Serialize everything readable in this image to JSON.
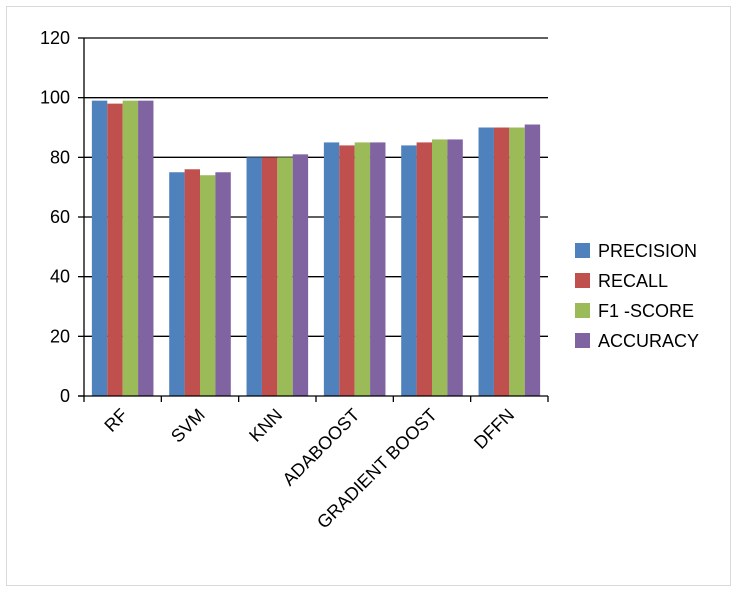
{
  "chart_data": {
    "type": "bar",
    "title": "",
    "xlabel": "",
    "ylabel": "",
    "categories": [
      "RF",
      "SVM",
      "KNN",
      "ADABOOST",
      "GRADIENT BOOST",
      "DFFN"
    ],
    "series": [
      {
        "name": "PRECISION",
        "color": "#4f81bd",
        "values": [
          99,
          75,
          80,
          85,
          84,
          90
        ]
      },
      {
        "name": "RECALL",
        "color": "#c0504d",
        "values": [
          98,
          76,
          80,
          84,
          85,
          90
        ]
      },
      {
        "name": "F1 -SCORE",
        "color": "#9bbb59",
        "values": [
          99,
          74,
          80,
          85,
          86,
          90
        ]
      },
      {
        "name": "ACCURACY",
        "color": "#8064a2",
        "values": [
          99,
          75,
          81,
          85,
          86,
          91
        ]
      }
    ],
    "ylim": [
      0,
      120
    ],
    "yticks": [
      0,
      20,
      40,
      60,
      80,
      100,
      120
    ],
    "grid": true,
    "legend_position": "right"
  }
}
